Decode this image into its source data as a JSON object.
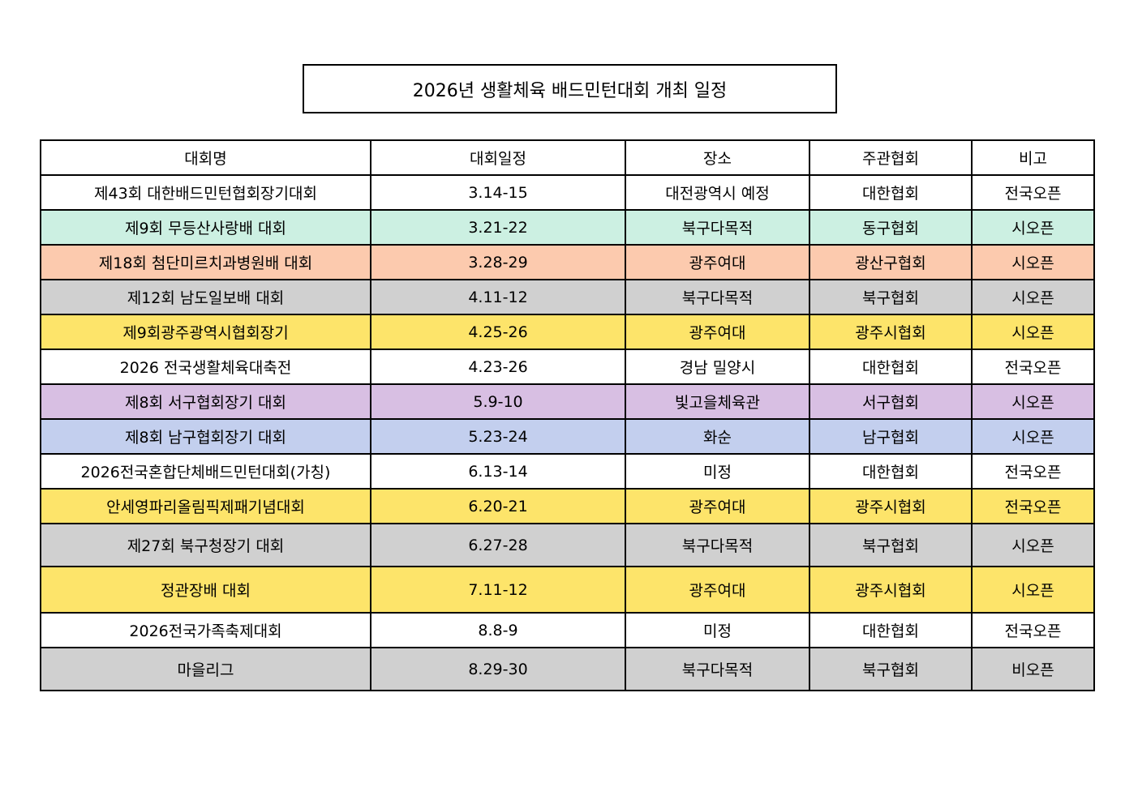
{
  "title": "2026년 생활체육 배드민턴대회 개최 일정",
  "table": {
    "header": [
      "대회명",
      "대회일정",
      "장소",
      "주관협회",
      "비고"
    ],
    "rows": [
      {
        "cells": [
          "제43회 대한배드민턴협회장기대회",
          "3.14-15",
          "대전광역시 예정",
          "대한협회",
          "전국오픈"
        ],
        "color": "#ffffff"
      },
      {
        "cells": [
          "제9회 무등산사랑배 대회",
          "3.21-22",
          "북구다목적",
          "동구협회",
          "시오픈"
        ],
        "color": "#ccf0e2"
      },
      {
        "cells": [
          "제18회 첨단미르치과병원배 대회",
          "3.28-29",
          "광주여대",
          "광산구협회",
          "시오픈"
        ],
        "color": "#fccaae"
      },
      {
        "cells": [
          "제12회 남도일보배 대회",
          "4.11-12",
          "북구다목적",
          "북구협회",
          "시오픈"
        ],
        "color": "#d0d0d0"
      },
      {
        "cells": [
          "제9회광주광역시협회장기",
          "4.25-26",
          "광주여대",
          "광주시협회",
          "시오픈"
        ],
        "color": "#fde46a"
      },
      {
        "cells": [
          "2026 전국생활체육대축전",
          "4.23-26",
          "경남 밀양시",
          "대한협회",
          "전국오픈"
        ],
        "color": "#ffffff"
      },
      {
        "cells": [
          "제8회 서구협회장기 대회",
          "5.9-10",
          "빛고을체육관",
          "서구협회",
          "시오픈"
        ],
        "color": "#d8bfe3"
      },
      {
        "cells": [
          "제8회 남구협회장기 대회",
          "5.23-24",
          "화순",
          "남구협회",
          "시오픈"
        ],
        "color": "#c3cfee"
      },
      {
        "cells": [
          "2026전국혼합단체배드민턴대회(가칭)",
          "6.13-14",
          "미정",
          "대한협회",
          "전국오픈"
        ],
        "color": "#ffffff"
      },
      {
        "cells": [
          "안세영파리올림픽제패기념대회",
          "6.20-21",
          "광주여대",
          "광주시협회",
          "전국오픈"
        ],
        "color": "#fde46a"
      },
      {
        "cells": [
          "제27회 북구청장기 대회",
          "6.27-28",
          "북구다목적",
          "북구협회",
          "시오픈"
        ],
        "color": "#d0d0d0"
      },
      {
        "cells": [
          "정관장배 대회",
          "7.11-12",
          "광주여대",
          "광주시협회",
          "시오픈"
        ],
        "color": "#fde46a"
      },
      {
        "cells": [
          "2026전국가족축제대회",
          "8.8-9",
          "미정",
          "대한협회",
          "전국오픈"
        ],
        "color": "#ffffff"
      },
      {
        "cells": [
          "마을리그",
          "8.29-30",
          "북구다목적",
          "북구협회",
          "비오픈"
        ],
        "color": "#d0d0d0"
      }
    ]
  }
}
